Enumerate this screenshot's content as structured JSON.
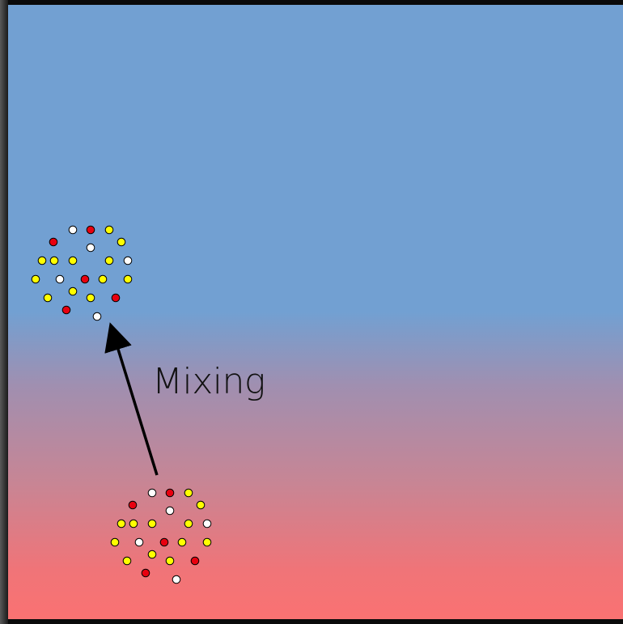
{
  "label": "Mixing",
  "colors": {
    "red": "#e8000f",
    "yellow": "#ffff00",
    "white": "#ffffff"
  }
}
